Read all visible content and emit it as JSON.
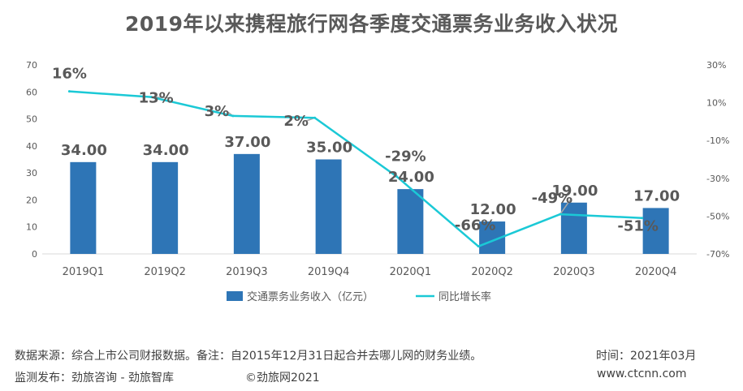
{
  "title": "2019年以来携程旅行网各季度交通票务业务收入状况",
  "chart_data": {
    "type": "bar",
    "categories": [
      "2019Q1",
      "2019Q2",
      "2019Q3",
      "2019Q4",
      "2020Q1",
      "2020Q2",
      "2020Q3",
      "2020Q4"
    ],
    "series": [
      {
        "name": "交通票务业务收入（亿元）",
        "type": "bar",
        "axis": "left",
        "color": "#2E75B6",
        "values": [
          34,
          34,
          37,
          35,
          24,
          12,
          19,
          17
        ],
        "labels": [
          "34.00",
          "34.00",
          "37.00",
          "35.00",
          "24.00",
          "12.00",
          "19.00",
          "17.00"
        ]
      },
      {
        "name": "同比增长率",
        "type": "line",
        "axis": "right",
        "color": "#1BC9D6",
        "values": [
          16,
          13,
          3,
          2,
          -29,
          -66,
          -49,
          -51
        ],
        "labels": [
          "16%",
          "13%",
          "3%",
          "2%",
          "-29%",
          "-66%",
          "-49%",
          "-51%"
        ]
      }
    ],
    "left_axis": {
      "min": 0,
      "max": 70,
      "ticks": [
        "0",
        "10",
        "20",
        "30",
        "40",
        "50",
        "60",
        "70"
      ]
    },
    "right_axis": {
      "min": -70,
      "max": 30,
      "ticks": [
        "-70%",
        "-50%",
        "-30%",
        "-10%",
        "10%",
        "30%"
      ]
    },
    "grid": false,
    "legend_position": "bottom"
  },
  "footer": {
    "source": "数据来源：综合上市公司财报数据。备注：自2015年12月31日起合并去哪儿网的财务业绩。",
    "time": "时间：2021年03月",
    "publisher": "监测发布：劲旅咨询 - 劲旅智库",
    "copyright": "©劲旅网2021",
    "website": "www.ctcnn.com"
  }
}
